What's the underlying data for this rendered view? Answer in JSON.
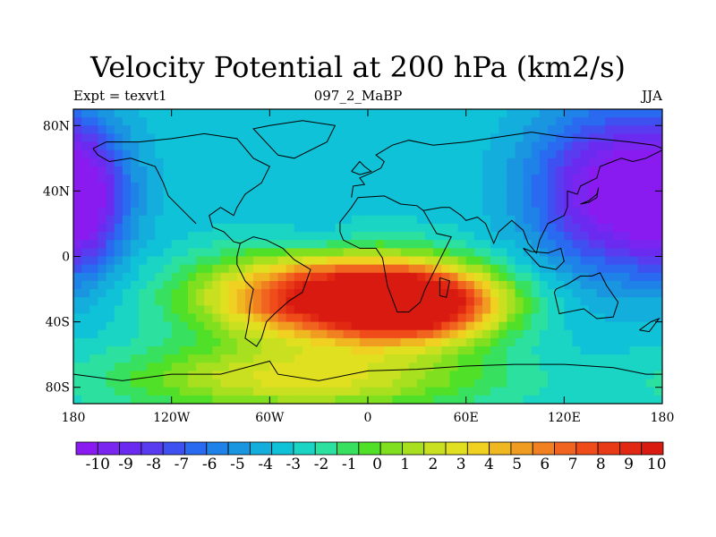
{
  "title": "Velocity Potential at 200 hPa (km2/s)",
  "subtitle_left": "Expt = texvt1",
  "subtitle_center": "097_2_MaBP",
  "subtitle_right": "JJA",
  "lat_ticks": [
    "80N",
    "40N",
    "0",
    "40S",
    "80S"
  ],
  "lon_ticks": [
    "180",
    "120W",
    "60W",
    "0",
    "60E",
    "120E",
    "180"
  ],
  "colorbar_labels": [
    "-10",
    "-9",
    "-8",
    "-7",
    "-6",
    "-5",
    "-4",
    "-3",
    "-2",
    "-1",
    "0",
    "1",
    "2",
    "3",
    "4",
    "5",
    "6",
    "7",
    "8",
    "9",
    "10"
  ],
  "colorbar_colors": [
    "#8a1bf0",
    "#7a25f0",
    "#6a2af0",
    "#5a3cf0",
    "#3e50f0",
    "#2a6af0",
    "#1e82e8",
    "#1a96e0",
    "#14aedc",
    "#10c2d8",
    "#1ad4c4",
    "#2ce0a0",
    "#38e060",
    "#50e028",
    "#80e020",
    "#a8e020",
    "#c8e020",
    "#e0e020",
    "#f0d020",
    "#f0b820",
    "#f09c20",
    "#f08020",
    "#f06420",
    "#f04c1a",
    "#e83a16",
    "#e02812",
    "#d81a10"
  ],
  "chart_data": {
    "type": "heatmap",
    "title": "Velocity Potential at 200 hPa (km2/s)",
    "xlim": [
      -180,
      180
    ],
    "ylim": [
      -90,
      90
    ],
    "x_ticks": [
      -180,
      -120,
      -60,
      0,
      60,
      120,
      180
    ],
    "y_ticks": [
      80,
      40,
      0,
      -40,
      -80
    ],
    "contour_levels": [
      -10,
      -9,
      -8,
      -7,
      -6,
      -5,
      -4,
      -3,
      -2,
      -1,
      0,
      1,
      2,
      3,
      4,
      5,
      6,
      7,
      8,
      9,
      10
    ],
    "features": [
      {
        "lon": -20,
        "lat": -25,
        "value": 10.5,
        "sx": 55,
        "sy": 18
      },
      {
        "lon": 30,
        "lat": -30,
        "value": 8,
        "sx": 35,
        "sy": 15
      },
      {
        "lon": 150,
        "lat": 40,
        "value": -10.5,
        "sx": 35,
        "sy": 35
      },
      {
        "lon": -175,
        "lat": 35,
        "value": -8,
        "sx": 18,
        "sy": 30
      },
      {
        "lon": -30,
        "lat": 10,
        "value": -4,
        "sx": 18,
        "sy": 8
      },
      {
        "lon": -40,
        "lat": -75,
        "value": 3,
        "sx": 80,
        "sy": 15
      }
    ],
    "background_value": -3
  }
}
